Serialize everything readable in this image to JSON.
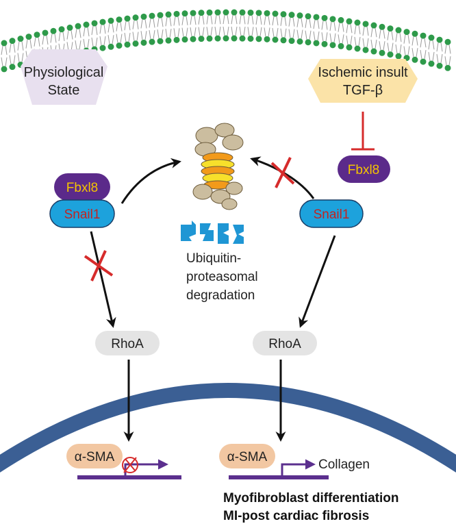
{
  "states": {
    "physiological": [
      "Physiological",
      "State"
    ],
    "ischemic": [
      "Ischemic insult",
      "TGF-β"
    ]
  },
  "proteins": {
    "fbxl8": "Fbxl8",
    "snail1": "Snail1",
    "rhoa": "RhoA",
    "asma": "α-SMA"
  },
  "degradation_label": [
    "Ubiquitin-",
    "proteasomal",
    "degradation"
  ],
  "gene_target": "Collagen",
  "outcome": [
    "Myofibroblast differentiation",
    "MI-post cardiac fibrosis"
  ],
  "colors": {
    "membrane_head": "#2e9a4a",
    "nucleus_border": "#3b5f94",
    "physiological_box": "#e8e0ef",
    "ischemic_box": "#fbe3a8",
    "fbxl8_fill": "#5b2a8a",
    "fbxl8_text": "#f5c400",
    "snail1_fill": "#1da2dc",
    "snail1_text": "#c4231f",
    "rhoa_fill": "#e4e4e4",
    "asma_fill": "#f2c7a2",
    "dna_line": "#5b2f8e",
    "inhibit": "#d62b2b",
    "arrow": "#111111",
    "ubiquitin_blue": "#1f96d4"
  },
  "icons": [
    "proteasome-icon",
    "ubiquitin-icon",
    "inhibition-cross-icon",
    "transcription-arrow-icon",
    "blocked-transcription-icon"
  ]
}
